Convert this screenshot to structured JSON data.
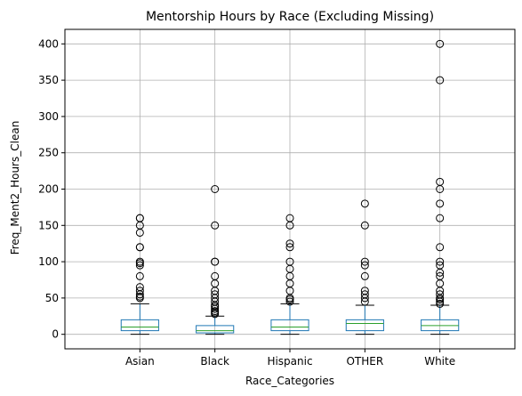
{
  "chart_data": {
    "type": "box",
    "title": "Mentorship Hours by Race (Excluding Missing)",
    "xlabel": "Race_Categories",
    "ylabel": "Freq_Ment2_Hours_Clean",
    "categories": [
      "Asian",
      "Black",
      "Hispanic",
      "OTHER",
      "White"
    ],
    "ylim": [
      -20,
      420
    ],
    "yticks": [
      0,
      50,
      100,
      150,
      200,
      250,
      300,
      350,
      400
    ],
    "grid": true,
    "box_color": "#1f77b4",
    "median_color": "#2ca02c",
    "boxes": [
      {
        "name": "Asian",
        "whisker_low": 0,
        "q1": 5,
        "median": 10,
        "q3": 20,
        "whisker_high": 42,
        "outliers": [
          50,
          52,
          55,
          60,
          65,
          80,
          95,
          98,
          100,
          120,
          120,
          140,
          150,
          160,
          160
        ]
      },
      {
        "name": "Black",
        "whisker_low": 0,
        "q1": 2,
        "median": 5,
        "q3": 12,
        "whisker_high": 25,
        "outliers": [
          28,
          30,
          32,
          35,
          38,
          40,
          45,
          50,
          55,
          60,
          70,
          80,
          100,
          100,
          150,
          200
        ]
      },
      {
        "name": "Hispanic",
        "whisker_low": 0,
        "q1": 5,
        "median": 10,
        "q3": 20,
        "whisker_high": 42,
        "outliers": [
          45,
          48,
          50,
          60,
          70,
          80,
          90,
          100,
          120,
          125,
          150,
          160
        ]
      },
      {
        "name": "OTHER",
        "whisker_low": 0,
        "q1": 5,
        "median": 15,
        "q3": 20,
        "whisker_high": 40,
        "outliers": [
          45,
          50,
          55,
          60,
          80,
          95,
          100,
          150,
          180
        ]
      },
      {
        "name": "White",
        "whisker_low": 0,
        "q1": 5,
        "median": 12,
        "q3": 20,
        "whisker_high": 40,
        "outliers": [
          42,
          45,
          48,
          50,
          55,
          60,
          70,
          80,
          85,
          95,
          100,
          120,
          160,
          180,
          200,
          210,
          350,
          400
        ]
      }
    ]
  }
}
